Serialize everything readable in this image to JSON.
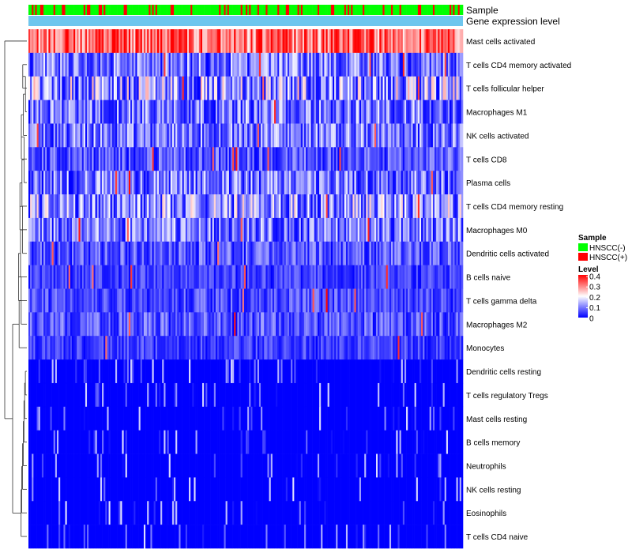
{
  "chart_data": {
    "type": "heatmap",
    "annotation_tracks": [
      "Sample",
      "Gene expression level"
    ],
    "rows": [
      "Mast cells activated",
      "T cells CD4 memory activated",
      "T cells follicular helper",
      "Macrophages M1",
      "NK cells activated",
      "T cells CD8",
      "Plasma cells",
      "T cells CD4 memory resting",
      "Macrophages M0",
      "Dendritic cells activated",
      "B cells naive",
      "T cells gamma delta",
      "Macrophages M2",
      "Monocytes",
      "Dendritic cells resting",
      "T cells regulatory  Tregs",
      "Mast cells resting",
      "B cells memory",
      "Neutrophils",
      "NK cells resting",
      "Eosinophils",
      "T cells CD4 naive"
    ],
    "row_mean_level": [
      0.32,
      0.1,
      0.14,
      0.1,
      0.1,
      0.07,
      0.1,
      0.13,
      0.1,
      0.07,
      0.05,
      0.06,
      0.07,
      0.05,
      0.03,
      0.02,
      0.02,
      0.02,
      0.01,
      0.005,
      0.003,
      0.02
    ],
    "n_columns": 260,
    "sample_fraction_positive": 0.18,
    "color_scale": {
      "min": 0,
      "max": 0.4,
      "low": "#0000ff",
      "mid": "#ffffff",
      "high": "#ff0000"
    },
    "legend": {
      "sample_title": "Sample",
      "sample_entries": [
        {
          "label": "HNSCC(-)",
          "color": "#00ff00"
        },
        {
          "label": "HNSCC(+)",
          "color": "#ff0000"
        }
      ],
      "level_title": "Level",
      "level_ticks": [
        "0.4",
        "0.3",
        "0.2",
        "0.1",
        "0"
      ],
      "expression_track_color": "#6ec6ee"
    }
  }
}
